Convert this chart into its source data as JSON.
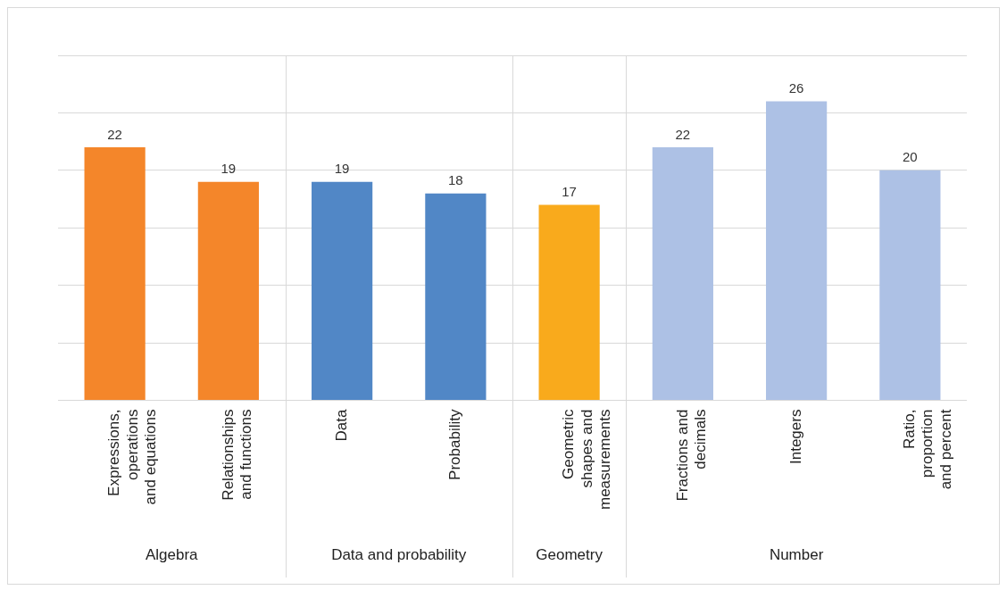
{
  "chart_data": {
    "type": "bar",
    "categories": [
      "Expressions, operations and equations",
      "Relationships and functions",
      "Data",
      "Probability",
      "Geometric shapes and measurements",
      "Fractions and decimals",
      "Integers",
      "Ratio, proportion and percent"
    ],
    "series": [
      {
        "color": "#f4862a",
        "values": [
          22,
          19,
          null,
          null,
          null,
          null,
          null,
          null
        ]
      },
      {
        "color": "#5187c6",
        "values": [
          null,
          null,
          19,
          18,
          null,
          null,
          null,
          null
        ]
      },
      {
        "color": "#f9aa1c",
        "values": [
          null,
          null,
          null,
          null,
          17,
          null,
          null,
          null
        ]
      },
      {
        "color": "#adc1e5",
        "values": [
          null,
          null,
          null,
          null,
          null,
          22,
          26,
          20
        ]
      }
    ],
    "ylim": [
      0,
      30
    ],
    "yticks": [
      {
        "value": 0,
        "label": null
      },
      {
        "value": 5,
        "label": null
      },
      {
        "value": 10,
        "label": null
      },
      {
        "value": 15,
        "label": null
      },
      {
        "value": 20,
        "label": null
      },
      {
        "value": 25,
        "label": null
      },
      {
        "value": 30,
        "label": null
      }
    ],
    "annotations": [
      "Algebra",
      "Data and probability",
      "Geometry",
      "Number"
    ],
    "tick_labels": "x",
    "grid": "y",
    "legend": false,
    "data_labels": true
  }
}
